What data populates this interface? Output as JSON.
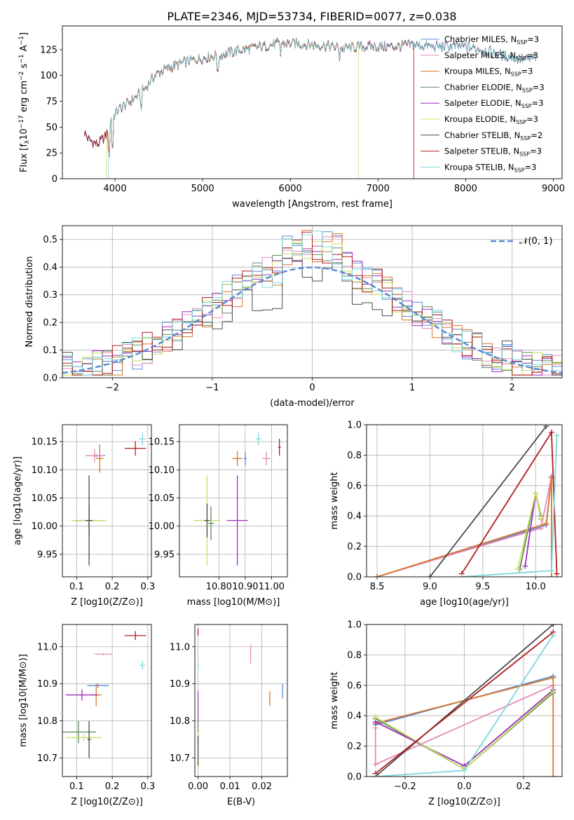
{
  "figure": {
    "title": "PLATE=2346, MJD=53734, FIBERID=0077, z=0.038"
  },
  "series_colors": [
    "#5b8bd6",
    "#e68ab8",
    "#d9772a",
    "#5e8a5e",
    "#9b2fbf",
    "#c8e05a",
    "#4a4a4a",
    "#b01c1c",
    "#7fd6dc"
  ],
  "chart_data": [
    {
      "id": "spectrum",
      "type": "line",
      "title": "PLATE=2346, MJD=53734, FIBERID=0077, z=0.038",
      "xlabel": "wavelength [Angstrom, rest frame]",
      "ylabel": "Flux [f_λ10^-17 erg cm^-2 s^-1 A^-1]",
      "xlim": [
        3400,
        9100
      ],
      "ylim": [
        0,
        148
      ],
      "xticks": [
        4000,
        5000,
        6000,
        7000,
        8000,
        9000
      ],
      "yticks": [
        0,
        25,
        50,
        75,
        100,
        125
      ],
      "grid": false,
      "legend": "top-right",
      "legend_entries": [
        {
          "label": "Chabrier MILES, N",
          "sub": "SSP",
          "tail": "=3"
        },
        {
          "label": "Salpeter MILES, N",
          "sub": "SSP",
          "tail": "=3"
        },
        {
          "label": "Kroupa MILES, N",
          "sub": "SSP",
          "tail": "=3"
        },
        {
          "label": "Chabrier ELODIE, N",
          "sub": "SSP",
          "tail": "=3"
        },
        {
          "label": "Salpeter ELODIE, N",
          "sub": "SSP",
          "tail": "=3"
        },
        {
          "label": "Kroupa ELODIE, N",
          "sub": "SSP",
          "tail": "=3"
        },
        {
          "label": "Chabrier STELIB, N",
          "sub": "SSP",
          "tail": "=2"
        },
        {
          "label": "Salpeter STELIB, N",
          "sub": "SSP",
          "tail": "=3"
        },
        {
          "label": "Kroupa STELIB, N",
          "sub": "SSP",
          "tail": "=3"
        }
      ],
      "continuum": {
        "x": [
          3650,
          3700,
          3800,
          3900,
          3950,
          4050,
          4150,
          4250,
          4350,
          4450,
          4600,
          4800,
          5000,
          5200,
          5400,
          5600,
          5800,
          6000,
          6200,
          6400,
          6600,
          6800,
          7000,
          7200,
          7400,
          7600,
          7800,
          8000,
          8200,
          8400,
          8700,
          8800
        ],
        "y": [
          45,
          38,
          33,
          42,
          57,
          68,
          73,
          80,
          88,
          100,
          107,
          113,
          117,
          120,
          124,
          127,
          130,
          131,
          130,
          129,
          126,
          128,
          128,
          128,
          130,
          128,
          128,
          128,
          125,
          120,
          115,
          118
        ]
      },
      "spectral_x_range": [
        3650,
        8800
      ],
      "cutoff_wavelengths": [
        9100,
        9100,
        7410,
        9100,
        9100,
        6780,
        9100,
        7410,
        9100
      ],
      "low_cutoff_wavelengths": [
        3650,
        3650,
        3650,
        3650,
        3650,
        3900,
        3650,
        3650,
        3920
      ]
    },
    {
      "id": "residuals",
      "type": "step",
      "xlabel": "(data-model)/error",
      "ylabel": "Normed distribution",
      "xlim": [
        -2.5,
        2.5
      ],
      "ylim": [
        0,
        0.55
      ],
      "xticks": [
        -2,
        -1,
        0,
        1,
        2
      ],
      "yticks": [
        0.0,
        0.1,
        0.2,
        0.3,
        0.4,
        0.5
      ],
      "grid": true,
      "legend": "top-right",
      "legend_label": "𝒩(0, 1)",
      "gaussian": {
        "mu": 0,
        "sigma": 1
      },
      "bin_width": 0.1
    },
    {
      "id": "age_vs_Z",
      "type": "errorbar",
      "xlabel": "Z [log10(Z/Z⊙)]",
      "ylabel": "age [log10(age/yr)]",
      "xlim": [
        0.06,
        0.31
      ],
      "ylim": [
        9.91,
        10.18
      ],
      "xticks": [
        0.1,
        0.2,
        0.3
      ],
      "yticks": [
        9.95,
        10.0,
        10.05,
        10.1,
        10.15
      ],
      "grid": true,
      "points": [
        {
          "x": 0.155,
          "xerr": 0.025,
          "y": 10.125,
          "yerr": 0.003
        },
        {
          "x": 0.15,
          "xerr": 0.025,
          "y": 10.125,
          "yerr": 0.012
        },
        {
          "x": 0.165,
          "xerr": 0.01,
          "y": 10.12,
          "yerr": 0.025
        },
        {
          "x": 0.135,
          "xerr": 0.04,
          "y": 10.01,
          "yerr": 0.025
        },
        {
          "x": 0.135,
          "xerr": 0.04,
          "y": 10.01,
          "yerr": 0.025
        },
        {
          "x": 0.135,
          "xerr": 0.05,
          "y": 10.01,
          "yerr": 0.07
        },
        {
          "x": 0.135,
          "xerr": 0.01,
          "y": 10.01,
          "yerr": 0.08
        },
        {
          "x": 0.265,
          "xerr": 0.03,
          "y": 10.138,
          "yerr": 0.013
        },
        {
          "x": 0.285,
          "xerr": 0.01,
          "y": 10.155,
          "yerr": 0.012
        }
      ]
    },
    {
      "id": "age_vs_mass",
      "type": "errorbar",
      "xlabel": "mass [log10(M/M⊙)]",
      "ylabel": "",
      "xlim": [
        10.65,
        11.06
      ],
      "ylim": [
        9.91,
        10.18
      ],
      "xticks": [
        10.8,
        10.9,
        11.0
      ],
      "yticks": [
        9.95,
        10.0,
        10.05,
        10.1,
        10.15
      ],
      "grid": true,
      "points": [
        {
          "x": 10.9,
          "xerr": 0.005,
          "y": 10.12,
          "yerr": 0.012
        },
        {
          "x": 10.98,
          "xerr": 0.015,
          "y": 10.12,
          "yerr": 0.012
        },
        {
          "x": 10.87,
          "xerr": 0.02,
          "y": 10.12,
          "yerr": 0.013
        },
        {
          "x": 10.77,
          "xerr": 0.01,
          "y": 10.005,
          "yerr": 0.03
        },
        {
          "x": 10.87,
          "xerr": 0.04,
          "y": 10.01,
          "yerr": 0.08
        },
        {
          "x": 10.755,
          "xerr": 0.05,
          "y": 10.01,
          "yerr": 0.08
        },
        {
          "x": 10.755,
          "xerr": 0.01,
          "y": 10.01,
          "yerr": 0.03
        },
        {
          "x": 11.03,
          "xerr": 0.005,
          "y": 10.14,
          "yerr": 0.015
        },
        {
          "x": 10.95,
          "xerr": 0.01,
          "y": 10.155,
          "yerr": 0.012
        }
      ]
    },
    {
      "id": "weights_vs_age",
      "type": "line",
      "xlabel": "age [log10(age/yr)]",
      "ylabel": "mass weight",
      "xlim": [
        8.4,
        10.25
      ],
      "ylim": [
        0,
        1
      ],
      "xticks": [
        8.5,
        9.0,
        9.5,
        10.0
      ],
      "yticks": [
        0.0,
        0.2,
        0.4,
        0.6,
        0.8,
        1.0
      ],
      "grid": true,
      "series": [
        {
          "x": [
            8.5,
            10.1,
            10.15
          ],
          "y": [
            0.0,
            0.34,
            0.66
          ]
        },
        {
          "x": [
            8.5,
            10.05,
            10.15
          ],
          "y": [
            0.0,
            0.32,
            0.66
          ]
        },
        {
          "x": [
            8.5,
            10.1,
            10.15,
            10.15
          ],
          "y": [
            0.0,
            0.35,
            0.65,
            0.0
          ]
        },
        {
          "x": [
            9.85,
            10.0,
            10.05
          ],
          "y": [
            0.05,
            0.55,
            0.4
          ]
        },
        {
          "x": [
            9.9,
            10.0,
            10.05
          ],
          "y": [
            0.07,
            0.55,
            0.38
          ]
        },
        {
          "x": [
            9.83,
            10.0,
            10.05
          ],
          "y": [
            0.05,
            0.55,
            0.38
          ]
        },
        {
          "x": [
            9.0,
            10.1
          ],
          "y": [
            0.0,
            0.99
          ]
        },
        {
          "x": [
            9.3,
            10.15,
            10.2
          ],
          "y": [
            0.02,
            0.95,
            0.02
          ]
        },
        {
          "x": [
            9.3,
            10.15,
            10.2
          ],
          "y": [
            0.0,
            0.04,
            0.93
          ]
        }
      ]
    },
    {
      "id": "mass_vs_Z",
      "type": "errorbar",
      "xlabel": "Z [log10(Z/Z⊙)]",
      "ylabel": "mass [log10(M/M⊙)]",
      "xlim": [
        0.06,
        0.31
      ],
      "ylim": [
        10.65,
        11.06
      ],
      "xticks": [
        0.1,
        0.2,
        0.3
      ],
      "yticks": [
        10.7,
        10.8,
        10.9,
        11.0
      ],
      "grid": true,
      "points": [
        {
          "x": 0.16,
          "xerr": 0.03,
          "y": 10.895,
          "yerr": 0.006
        },
        {
          "x": 0.175,
          "xerr": 0.025,
          "y": 10.98,
          "yerr": 0.003
        },
        {
          "x": 0.155,
          "xerr": 0.015,
          "y": 10.87,
          "yerr": 0.03
        },
        {
          "x": 0.105,
          "xerr": 0.05,
          "y": 10.77,
          "yerr": 0.03
        },
        {
          "x": 0.115,
          "xerr": 0.045,
          "y": 10.87,
          "yerr": 0.015
        },
        {
          "x": 0.12,
          "xerr": 0.05,
          "y": 10.755,
          "yerr": 0.01
        },
        {
          "x": 0.135,
          "xerr": 0.005,
          "y": 10.75,
          "yerr": 0.05
        },
        {
          "x": 0.265,
          "xerr": 0.03,
          "y": 11.03,
          "yerr": 0.012
        },
        {
          "x": 0.285,
          "xerr": 0.008,
          "y": 10.95,
          "yerr": 0.012
        }
      ]
    },
    {
      "id": "mass_vs_ebv",
      "type": "errorbar",
      "xlabel": "E(B-V)",
      "ylabel": "",
      "xlim": [
        -0.001,
        0.028
      ],
      "ylim": [
        10.65,
        11.06
      ],
      "xticks": [
        0.0,
        0.01,
        0.02
      ],
      "yticks": [
        10.7,
        10.8,
        10.9,
        11.0
      ],
      "grid": true,
      "points": [
        {
          "x": 0.0265,
          "xerr": 0.0,
          "y": 10.88,
          "yerr": 0.02
        },
        {
          "x": 0.0165,
          "xerr": 0.0,
          "y": 10.98,
          "yerr": 0.025
        },
        {
          "x": 0.0225,
          "xerr": 0.0,
          "y": 10.86,
          "yerr": 0.02
        },
        {
          "x": 0.0,
          "xerr": 0.0,
          "y": 10.77,
          "yerr": 0.03
        },
        {
          "x": 0.0,
          "xerr": 0.0,
          "y": 10.84,
          "yerr": 0.04
        },
        {
          "x": 0.0,
          "xerr": 0.0,
          "y": 10.72,
          "yerr": 0.05
        },
        {
          "x": 0.0,
          "xerr": 0.0,
          "y": 10.72,
          "yerr": 0.04
        },
        {
          "x": 0.0,
          "xerr": 0.0,
          "y": 11.04,
          "yerr": 0.01
        },
        {
          "x": 0.0,
          "xerr": 0.0,
          "y": 10.95,
          "yerr": 0.01
        }
      ]
    },
    {
      "id": "weights_vs_Z",
      "type": "line",
      "xlabel": "Z [log10(Z/Z⊙)]",
      "ylabel": "mass weight",
      "xlim": [
        -0.33,
        0.33
      ],
      "ylim": [
        0,
        1
      ],
      "xticks": [
        -0.2,
        0.0,
        0.2
      ],
      "yticks": [
        0.0,
        0.2,
        0.4,
        0.6,
        0.8,
        1.0
      ],
      "grid": true,
      "series": [
        {
          "x": [
            -0.3,
            0.3
          ],
          "y": [
            0.34,
            0.66
          ]
        },
        {
          "x": [
            -0.3,
            -0.3,
            0.3
          ],
          "y": [
            0.32,
            0.08,
            0.6
          ]
        },
        {
          "x": [
            -0.3,
            0.3,
            0.3
          ],
          "y": [
            0.35,
            0.65,
            0.0
          ]
        },
        {
          "x": [
            -0.3,
            0.0,
            0.3
          ],
          "y": [
            0.38,
            0.05,
            0.55
          ]
        },
        {
          "x": [
            -0.3,
            0.0,
            0.3
          ],
          "y": [
            0.36,
            0.07,
            0.57
          ]
        },
        {
          "x": [
            -0.3,
            0.0,
            0.3
          ],
          "y": [
            0.39,
            0.05,
            0.56
          ]
        },
        {
          "x": [
            -0.3,
            0.3
          ],
          "y": [
            0.0,
            1.0
          ]
        },
        {
          "x": [
            -0.3,
            0.3
          ],
          "y": [
            0.02,
            0.95
          ]
        },
        {
          "x": [
            -0.3,
            0.0,
            0.3
          ],
          "y": [
            0.0,
            0.04,
            0.93
          ]
        }
      ]
    }
  ]
}
